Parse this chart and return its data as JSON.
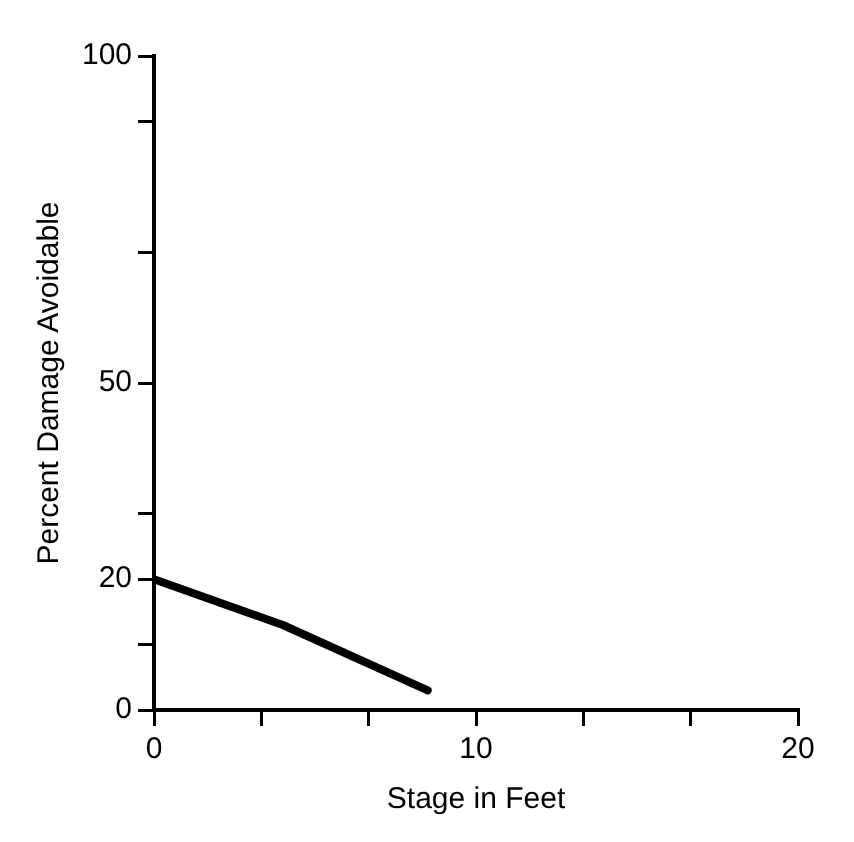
{
  "chart_data": {
    "type": "line",
    "xlabel": "Stage in Feet",
    "ylabel": "Percent Damage Avoidable",
    "x": [
      0,
      4,
      8.5
    ],
    "series": [
      {
        "color": "#000000",
        "values": [
          20,
          13,
          3
        ]
      }
    ],
    "xlim": [
      0,
      20
    ],
    "xticks": [
      0,
      {
        "value": 3.33,
        "label": null
      },
      {
        "value": 6.67,
        "label": null
      },
      10,
      {
        "value": 13.33,
        "label": null
      },
      {
        "value": 16.67,
        "label": null
      },
      20
    ],
    "ylim": [
      0,
      100
    ],
    "yticks": [
      0,
      {
        "value": 10,
        "label": null
      },
      20,
      {
        "value": 30,
        "label": null
      },
      50,
      {
        "value": 70,
        "label": null
      },
      {
        "value": 90,
        "label": null
      },
      100
    ],
    "grid": false,
    "legend": false,
    "marker": "none",
    "line_style": "solid"
  }
}
